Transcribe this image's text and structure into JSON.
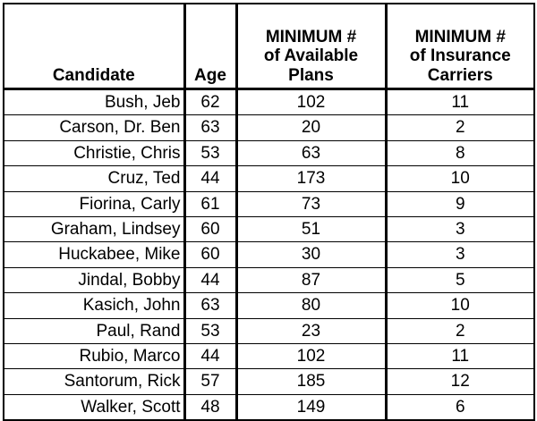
{
  "chart_data": {
    "type": "table",
    "columns": [
      "Candidate",
      "Age",
      "MINIMUM # of Available Plans",
      "MINIMUM # of Insurance Carriers"
    ],
    "header_lines": [
      [
        "Candidate"
      ],
      [
        "Age"
      ],
      [
        "MINIMUM #",
        "of Available",
        "Plans"
      ],
      [
        "MINIMUM #",
        "of Insurance",
        "Carriers"
      ]
    ],
    "rows": [
      [
        "Bush, Jeb",
        62,
        102,
        11
      ],
      [
        "Carson, Dr. Ben",
        63,
        20,
        2
      ],
      [
        "Christie, Chris",
        53,
        63,
        8
      ],
      [
        "Cruz, Ted",
        44,
        173,
        10
      ],
      [
        "Fiorina, Carly",
        61,
        73,
        9
      ],
      [
        "Graham, Lindsey",
        60,
        51,
        3
      ],
      [
        "Huckabee, Mike",
        60,
        30,
        3
      ],
      [
        "Jindal, Bobby",
        44,
        87,
        5
      ],
      [
        "Kasich, John",
        63,
        80,
        10
      ],
      [
        "Paul, Rand",
        53,
        23,
        2
      ],
      [
        "Rubio, Marco",
        44,
        102,
        11
      ],
      [
        "Santorum, Rick",
        57,
        185,
        12
      ],
      [
        "Walker, Scott",
        48,
        149,
        6
      ]
    ]
  }
}
